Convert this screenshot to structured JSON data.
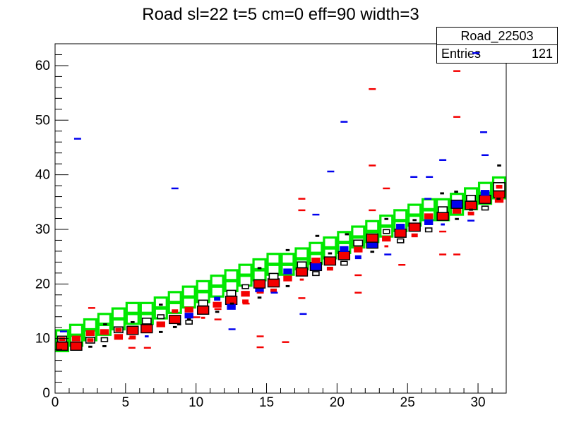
{
  "title": "Road sl=22 t=5 cm=0 eff=90 width=3",
  "stats": {
    "histogram_name": "Road_22503",
    "entries_label": "Entries",
    "entries_value": "121"
  },
  "colors": {
    "road_green": "#00e800",
    "red": "#f40000",
    "blue": "#0000ee",
    "black": "#000000",
    "frame": "#000000",
    "background": "#ffffff"
  },
  "chart_data": {
    "type": "heatmap",
    "title": "Road sl=22 t=5 cm=0 eff=90 width=3",
    "x_axis": {
      "min": 0,
      "max": 32,
      "major_ticks": [
        0,
        5,
        10,
        15,
        20,
        25,
        30
      ],
      "minor_step": 1,
      "label": ""
    },
    "y_axis": {
      "min": 0,
      "max": 64,
      "major_ticks": [
        0,
        10,
        20,
        30,
        40,
        50,
        60
      ],
      "minor_step": 2,
      "label": ""
    },
    "grid": false,
    "legend": "none",
    "road_band": {
      "description": "green open cells, 1 x-unit wide, two overlapping cells per column each 2.4 y-units tall, second cell offset +1.8",
      "cell_height": 2.4,
      "cell_offset": 1.8,
      "column_bottoms": [
        7.5,
        8.5,
        9.5,
        10.5,
        11.5,
        12.5,
        12.5,
        13.5,
        14.5,
        15.5,
        16.5,
        17.5,
        18.5,
        19.5,
        20.5,
        21.5,
        21.5,
        22.5,
        23.5,
        24.5,
        25.5,
        26.5,
        27.5,
        28.5,
        29.5,
        30.5,
        31.5,
        31.5,
        32.5,
        33.5,
        34.5,
        35.5
      ]
    },
    "point_format": "[x_center, y_center, size(L|M|S|T|D), color(r=red,b=blue,k=black), top_flag]",
    "size_units": {
      "L": [
        0.8,
        1.5
      ],
      "M": [
        0.62,
        1.05
      ],
      "S": [
        0.45,
        0.7
      ],
      "T": [
        0.28,
        0.38
      ],
      "D": [
        0.5,
        0.32
      ]
    },
    "points": [
      [
        0.5,
        8.6,
        "L",
        "r"
      ],
      [
        0.5,
        9.9,
        "M",
        "k"
      ],
      [
        0.5,
        9.9,
        "S",
        "r"
      ],
      [
        1.5,
        8.6,
        "L",
        "r"
      ],
      [
        1.5,
        10.0,
        "M",
        "r"
      ],
      [
        2.5,
        9.7,
        "M",
        "k"
      ],
      [
        2.5,
        9.7,
        "S",
        "r"
      ],
      [
        2.5,
        11.0,
        "M",
        "r"
      ],
      [
        2.5,
        8.5,
        "T",
        "k"
      ],
      [
        3.5,
        8.6,
        "T",
        "k"
      ],
      [
        3.5,
        9.8,
        "S",
        "k"
      ],
      [
        3.5,
        11.2,
        "M",
        "r"
      ],
      [
        4.5,
        10.3,
        "M",
        "r"
      ],
      [
        4.5,
        11.6,
        "M",
        "k"
      ],
      [
        4.5,
        11.6,
        "S",
        "r"
      ],
      [
        5.5,
        11.5,
        "L",
        "r"
      ],
      [
        5.5,
        10.2,
        "S",
        "r"
      ],
      [
        5.5,
        13.0,
        "T",
        "k"
      ],
      [
        6.5,
        11.8,
        "L",
        "r"
      ],
      [
        6.5,
        13.2,
        "M",
        "k"
      ],
      [
        6.5,
        10.4,
        "T",
        "b"
      ],
      [
        7.5,
        12.6,
        "M",
        "r"
      ],
      [
        7.5,
        14.0,
        "S",
        "k"
      ],
      [
        7.5,
        11.2,
        "T",
        "k"
      ],
      [
        8.5,
        13.5,
        "L",
        "r"
      ],
      [
        8.5,
        15.0,
        "S",
        "r"
      ],
      [
        8.5,
        12.1,
        "T",
        "k"
      ],
      [
        9.5,
        14.2,
        "M",
        "b"
      ],
      [
        9.5,
        15.3,
        "M",
        "r"
      ],
      [
        9.5,
        13.0,
        "S",
        "k"
      ],
      [
        10.5,
        15.2,
        "L",
        "r"
      ],
      [
        10.5,
        16.5,
        "M",
        "k"
      ],
      [
        10.5,
        13.8,
        "T",
        "r"
      ],
      [
        11.5,
        16.2,
        "M",
        "r"
      ],
      [
        11.5,
        17.3,
        "S",
        "b"
      ],
      [
        11.5,
        14.9,
        "T",
        "k"
      ],
      [
        12.5,
        17.0,
        "L",
        "r"
      ],
      [
        12.5,
        18.3,
        "M",
        "k"
      ],
      [
        12.5,
        15.8,
        "M",
        "b"
      ],
      [
        13.5,
        18.2,
        "M",
        "r"
      ],
      [
        13.5,
        19.5,
        "S",
        "k"
      ],
      [
        13.5,
        16.8,
        "S",
        "r"
      ],
      [
        14.5,
        19.0,
        "M",
        "b"
      ],
      [
        14.5,
        20.0,
        "L",
        "r"
      ],
      [
        14.5,
        17.5,
        "T",
        "k"
      ],
      [
        15.5,
        20.2,
        "L",
        "r"
      ],
      [
        15.5,
        21.4,
        "M",
        "k"
      ],
      [
        15.5,
        18.8,
        "S",
        "r"
      ],
      [
        16.5,
        21.0,
        "M",
        "r"
      ],
      [
        16.5,
        22.3,
        "M",
        "b"
      ],
      [
        16.5,
        19.6,
        "T",
        "k"
      ],
      [
        17.5,
        22.2,
        "L",
        "r"
      ],
      [
        17.5,
        23.5,
        "M",
        "k"
      ],
      [
        17.5,
        20.8,
        "T",
        "r"
      ],
      [
        18.5,
        23.2,
        "L",
        "b"
      ],
      [
        18.5,
        24.3,
        "M",
        "r"
      ],
      [
        18.5,
        21.9,
        "S",
        "k"
      ],
      [
        19.5,
        24.2,
        "L",
        "r"
      ],
      [
        19.5,
        25.6,
        "T",
        "k"
      ],
      [
        19.5,
        22.8,
        "S",
        "r"
      ],
      [
        20.5,
        25.2,
        "L",
        "r"
      ],
      [
        20.5,
        26.4,
        "M",
        "b"
      ],
      [
        20.5,
        23.8,
        "S",
        "k"
      ],
      [
        21.5,
        26.3,
        "M",
        "r"
      ],
      [
        21.5,
        27.5,
        "M",
        "k"
      ],
      [
        21.5,
        24.9,
        "S",
        "b"
      ],
      [
        22.5,
        27.3,
        "L",
        "b"
      ],
      [
        22.5,
        28.4,
        "L",
        "r"
      ],
      [
        22.5,
        25.9,
        "T",
        "k"
      ],
      [
        23.5,
        28.3,
        "M",
        "r"
      ],
      [
        23.5,
        29.6,
        "S",
        "k"
      ],
      [
        23.5,
        26.9,
        "T",
        "r"
      ],
      [
        24.5,
        29.3,
        "L",
        "r"
      ],
      [
        24.5,
        30.5,
        "M",
        "b"
      ],
      [
        24.5,
        27.9,
        "S",
        "k"
      ],
      [
        25.5,
        30.4,
        "L",
        "r"
      ],
      [
        25.5,
        31.7,
        "T",
        "k"
      ],
      [
        25.5,
        28.9,
        "S",
        "r"
      ],
      [
        26.5,
        31.3,
        "M",
        "b"
      ],
      [
        26.5,
        32.4,
        "M",
        "r"
      ],
      [
        26.5,
        29.9,
        "S",
        "k"
      ],
      [
        27.5,
        32.4,
        "L",
        "r"
      ],
      [
        27.5,
        33.6,
        "M",
        "k"
      ],
      [
        27.5,
        30.9,
        "T",
        "b"
      ],
      [
        28.5,
        33.4,
        "M",
        "r"
      ],
      [
        28.5,
        34.6,
        "L",
        "b"
      ],
      [
        28.5,
        31.9,
        "T",
        "k"
      ],
      [
        29.5,
        34.4,
        "L",
        "r"
      ],
      [
        29.5,
        35.7,
        "M",
        "k"
      ],
      [
        29.5,
        32.9,
        "S",
        "r"
      ],
      [
        30.5,
        35.5,
        "L",
        "r"
      ],
      [
        30.5,
        36.7,
        "M",
        "b"
      ],
      [
        30.5,
        33.9,
        "S",
        "k"
      ],
      [
        31.5,
        36.6,
        "L",
        "r"
      ],
      [
        31.5,
        37.8,
        "L",
        "k"
      ],
      [
        31.5,
        37.8,
        "S",
        "r"
      ],
      [
        31.5,
        35.4,
        "M",
        "r"
      ],
      [
        0.6,
        11.3,
        "D",
        "b"
      ],
      [
        1.6,
        46.6,
        "D",
        "b"
      ],
      [
        8.5,
        37.5,
        "D",
        "b"
      ],
      [
        12.55,
        11.7,
        "D",
        "b"
      ],
      [
        15.55,
        18.4,
        "D",
        "b"
      ],
      [
        17.6,
        14.5,
        "D",
        "b"
      ],
      [
        18.5,
        32.7,
        "D",
        "b"
      ],
      [
        19.55,
        40.6,
        "D",
        "b"
      ],
      [
        20.5,
        49.7,
        "D",
        "b"
      ],
      [
        23.6,
        25.4,
        "D",
        "b"
      ],
      [
        25.45,
        39.6,
        "D",
        "b"
      ],
      [
        26.55,
        39.6,
        "D",
        "b"
      ],
      [
        26.45,
        35.6,
        "D",
        "b"
      ],
      [
        27.5,
        42.7,
        "D",
        "b"
      ],
      [
        29.5,
        31.6,
        "D",
        "b"
      ],
      [
        30.4,
        47.8,
        "D",
        "b"
      ],
      [
        30.5,
        43.6,
        "D",
        "b"
      ],
      [
        29.85,
        62.3,
        "D",
        "b",
        1
      ],
      [
        2.6,
        15.6,
        "D",
        "r"
      ],
      [
        5.45,
        11.3,
        "D",
        "r"
      ],
      [
        5.45,
        10.0,
        "D",
        "r"
      ],
      [
        5.45,
        8.3,
        "D",
        "r"
      ],
      [
        6.55,
        8.3,
        "D",
        "r"
      ],
      [
        10.05,
        13.9,
        "D",
        "r"
      ],
      [
        10.45,
        15.4,
        "D",
        "r"
      ],
      [
        11.55,
        15.4,
        "D",
        "r"
      ],
      [
        11.55,
        13.5,
        "D",
        "r"
      ],
      [
        13.55,
        16.4,
        "D",
        "r"
      ],
      [
        14.55,
        10.4,
        "D",
        "r"
      ],
      [
        14.55,
        8.4,
        "D",
        "r"
      ],
      [
        14.55,
        18.4,
        "D",
        "r"
      ],
      [
        16.35,
        9.35,
        "D",
        "r"
      ],
      [
        17.5,
        17.4,
        "D",
        "r"
      ],
      [
        17.5,
        33.5,
        "D",
        "r"
      ],
      [
        17.5,
        35.6,
        "D",
        "r"
      ],
      [
        21.5,
        21.6,
        "D",
        "r"
      ],
      [
        21.5,
        18.4,
        "D",
        "r"
      ],
      [
        22.5,
        33.5,
        "D",
        "r"
      ],
      [
        22.5,
        41.7,
        "D",
        "r"
      ],
      [
        22.5,
        55.7,
        "D",
        "r"
      ],
      [
        23.5,
        37.5,
        "D",
        "r"
      ],
      [
        24.6,
        23.5,
        "D",
        "r"
      ],
      [
        27.5,
        25.4,
        "D",
        "r"
      ],
      [
        28.5,
        25.4,
        "D",
        "r"
      ],
      [
        27.5,
        29.6,
        "D",
        "r"
      ],
      [
        28.5,
        50.6,
        "D",
        "r"
      ],
      [
        28.5,
        59.0,
        "D",
        "r"
      ],
      [
        3.55,
        12.6,
        "T",
        "k"
      ],
      [
        7.5,
        16.2,
        "T",
        "k"
      ],
      [
        8.8,
        12.6,
        "T",
        "k"
      ],
      [
        9.5,
        13.5,
        "T",
        "k"
      ],
      [
        12.55,
        16.4,
        "T",
        "k"
      ],
      [
        14.5,
        22.9,
        "T",
        "k"
      ],
      [
        16.5,
        26.2,
        "T",
        "k"
      ],
      [
        18.6,
        28.8,
        "T",
        "k"
      ],
      [
        20.7,
        29.1,
        "T",
        "k"
      ],
      [
        23.5,
        31.9,
        "T",
        "k"
      ],
      [
        27.45,
        36.6,
        "T",
        "k"
      ],
      [
        28.45,
        36.9,
        "T",
        "k"
      ],
      [
        29.5,
        33.6,
        "T",
        "k"
      ],
      [
        31.45,
        35.6,
        "T",
        "k"
      ],
      [
        31.5,
        41.7,
        "T",
        "k"
      ]
    ]
  }
}
